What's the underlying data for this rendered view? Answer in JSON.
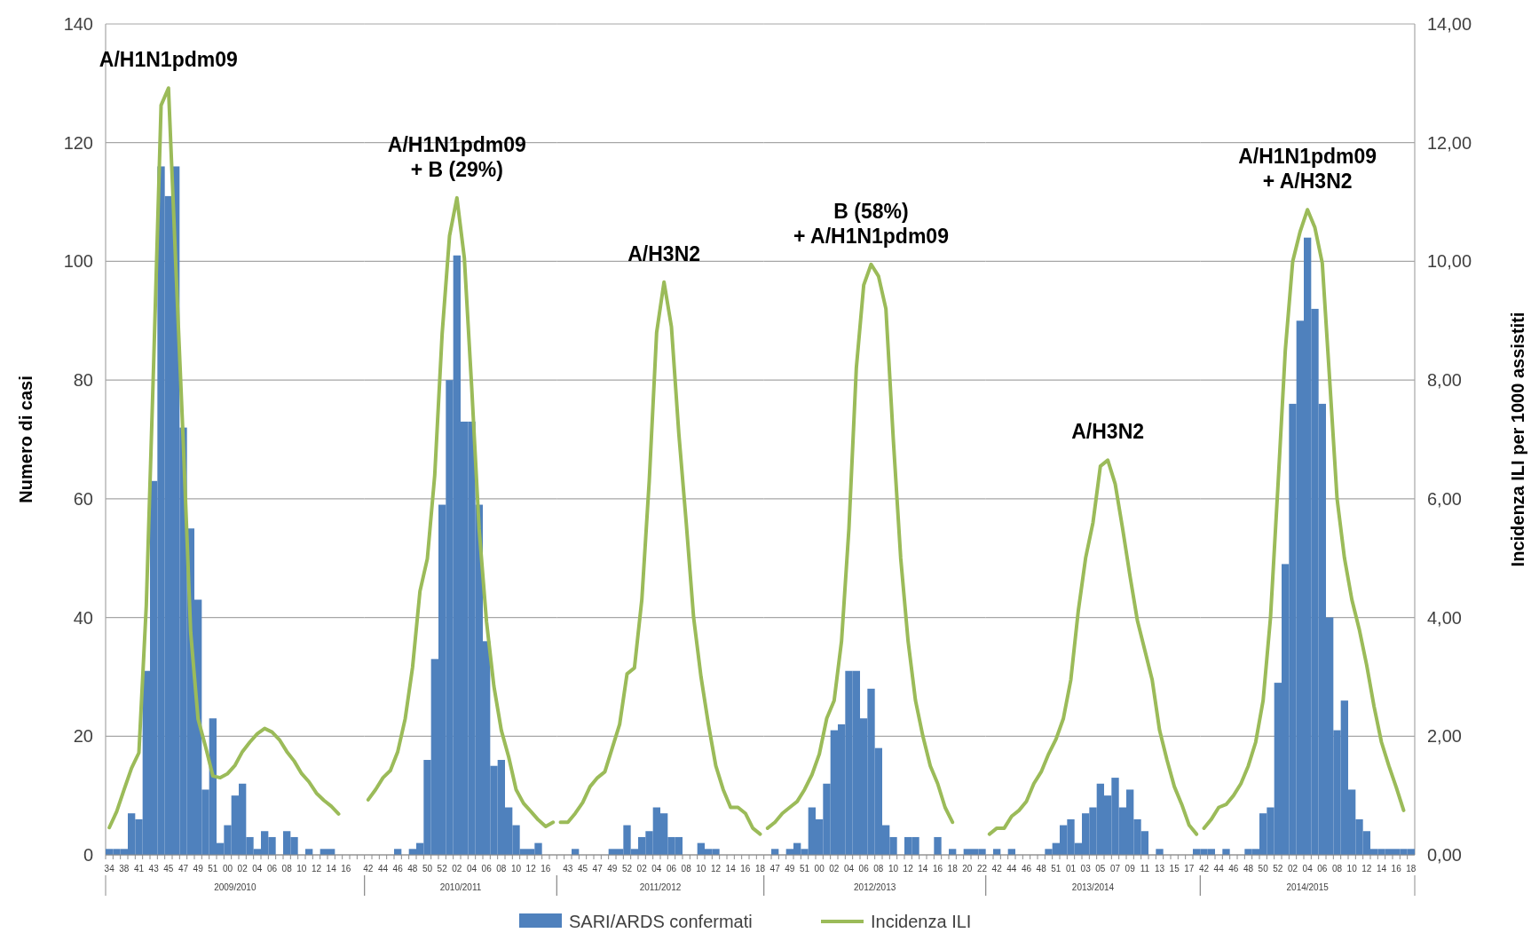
{
  "chart_data": [
    {
      "type": "bar",
      "xlabel": "2009/2010",
      "ylabel": "Numero di casi",
      "ylim": [
        0,
        140
      ],
      "yticks": [
        0,
        20,
        40,
        60,
        80,
        100,
        120,
        140
      ],
      "y2lim": [
        0,
        14
      ],
      "grid": "y",
      "categories": [
        "34",
        null,
        "38",
        null,
        "41",
        null,
        "43",
        null,
        "45",
        null,
        "47",
        null,
        "49",
        null,
        "51",
        null,
        "00",
        null,
        "02",
        null,
        "04",
        null,
        "06",
        null,
        "08",
        null,
        "10",
        null,
        "12",
        null,
        "14",
        null,
        "16",
        null,
        null
      ],
      "series": [
        {
          "color": "#4f81bd",
          "values": [
            1,
            1,
            1,
            7,
            6,
            31,
            63,
            116,
            111,
            116,
            72,
            55,
            43,
            11,
            23,
            2,
            5,
            10,
            12,
            3,
            1,
            4,
            3,
            0,
            4,
            3,
            0,
            1,
            0,
            1,
            1,
            0,
            0,
            0,
            0
          ]
        },
        {
          "type": "line",
          "axis": "y2",
          "color": "#9bbb59",
          "values": [
            0.46,
            0.73,
            1.1,
            1.46,
            1.72,
            4.2,
            8.3,
            12.63,
            12.92,
            9.9,
            6.95,
            3.75,
            2.29,
            1.83,
            1.33,
            1.3,
            1.37,
            1.51,
            1.74,
            1.9,
            2.04,
            2.13,
            2.07,
            1.94,
            1.74,
            1.58,
            1.37,
            1.23,
            1.04,
            0.92,
            0.82,
            0.69,
            null,
            null,
            null
          ]
        }
      ],
      "annotations": [
        "A/H1N1pdm09"
      ]
    },
    {
      "type": "bar",
      "xlabel": "2010/2011",
      "ylim": [
        0,
        140
      ],
      "yticks": [
        0,
        20,
        40,
        60,
        80,
        100,
        120,
        140
      ],
      "y2lim": [
        0,
        14
      ],
      "grid": "y",
      "tick_labels": "x",
      "categories": [
        "42",
        null,
        "44",
        null,
        "46",
        null,
        "48",
        null,
        "50",
        null,
        "52",
        null,
        "02",
        null,
        "04",
        null,
        "06",
        null,
        "08",
        null,
        "10",
        null,
        "12",
        null,
        "16",
        null
      ],
      "series": [
        {
          "color": "#4f81bd",
          "values": [
            0,
            0,
            0,
            0,
            1,
            0,
            1,
            2,
            16,
            33,
            59,
            80,
            101,
            73,
            73,
            59,
            36,
            15,
            16,
            8,
            5,
            1,
            1,
            2,
            0,
            0
          ]
        },
        {
          "type": "line",
          "axis": "y2",
          "color": "#9bbb59",
          "values": [
            0.93,
            1.1,
            1.3,
            1.42,
            1.74,
            2.29,
            3.16,
            4.44,
            4.99,
            6.4,
            8.78,
            10.43,
            11.07,
            10.06,
            7.87,
            5.49,
            3.93,
            2.84,
            2.1,
            1.65,
            1.1,
            0.87,
            0.73,
            0.59,
            0.48,
            0.55
          ]
        }
      ],
      "annotations": [
        "A/H1N1pdm09\n+ B (29%)"
      ]
    },
    {
      "type": "bar",
      "xlabel": "2011/2012",
      "ylim": [
        0,
        140
      ],
      "yticks": [
        0,
        20,
        40,
        60,
        80,
        100,
        120,
        140
      ],
      "y2lim": [
        0,
        14
      ],
      "grid": "y",
      "tick_labels": "x",
      "legend": "bottom",
      "categories": [
        null,
        "43",
        null,
        "45",
        null,
        "47",
        null,
        "49",
        null,
        "52",
        null,
        "02",
        null,
        "04",
        null,
        "06",
        null,
        "08",
        null,
        "10",
        null,
        "12",
        null,
        "14",
        null,
        "16",
        null,
        "18"
      ],
      "series": [
        {
          "name": "SARI/ARDS confermati",
          "color": "#4f81bd",
          "values": [
            0,
            0,
            1,
            0,
            0,
            0,
            0,
            1,
            1,
            5,
            1,
            3,
            4,
            8,
            7,
            3,
            3,
            0,
            0,
            2,
            1,
            1,
            0,
            0,
            0,
            0,
            0,
            0
          ]
        },
        {
          "name": "Incidenza ILI",
          "type": "line",
          "axis": "y2",
          "color": "#9bbb59",
          "values": [
            0.55,
            0.55,
            0.7,
            0.88,
            1.15,
            1.3,
            1.4,
            1.8,
            2.2,
            3.05,
            3.15,
            4.3,
            6.3,
            8.8,
            9.65,
            8.9,
            7.1,
            5.6,
            4.0,
            3.0,
            2.2,
            1.5,
            1.1,
            0.8,
            0.8,
            0.7,
            0.45,
            0.35
          ]
        }
      ],
      "annotations": [
        "A/H3N2"
      ]
    },
    {
      "type": "bar",
      "xlabel": "2012/2013",
      "ylim": [
        0,
        140
      ],
      "yticks": [
        0,
        20,
        40,
        60,
        80,
        100,
        120,
        140
      ],
      "y2lim": [
        0,
        14
      ],
      "grid": "y",
      "tick_labels": "x",
      "categories": [
        null,
        "47",
        null,
        "49",
        null,
        "51",
        null,
        "00",
        null,
        "02",
        null,
        "04",
        null,
        "06",
        null,
        "08",
        null,
        "10",
        null,
        "12",
        null,
        "14",
        null,
        "16",
        null,
        "18",
        null,
        "20",
        null,
        "22"
      ],
      "series": [
        {
          "color": "#4f81bd",
          "values": [
            0,
            1,
            0,
            1,
            2,
            1,
            8,
            6,
            12,
            21,
            22,
            31,
            31,
            23,
            28,
            18,
            5,
            3,
            0,
            3,
            3,
            0,
            0,
            3,
            0,
            1,
            0,
            1,
            1,
            1
          ]
        },
        {
          "type": "line",
          "axis": "y2",
          "color": "#9bbb59",
          "values": [
            0.45,
            0.55,
            0.7,
            0.8,
            0.9,
            1.1,
            1.35,
            1.7,
            2.3,
            2.6,
            3.6,
            5.5,
            8.2,
            9.6,
            9.95,
            9.75,
            9.2,
            7.0,
            5.0,
            3.6,
            2.6,
            2.0,
            1.5,
            1.2,
            0.8,
            0.55,
            null,
            null,
            null,
            null
          ]
        }
      ],
      "annotations": [
        "B (58%)\n+ A/H1N1pdm09"
      ]
    },
    {
      "type": "bar",
      "xlabel": "2013/2014",
      "ylim": [
        0,
        140
      ],
      "yticks": [
        0,
        20,
        40,
        60,
        80,
        100,
        120,
        140
      ],
      "y2lim": [
        0,
        14
      ],
      "grid": "y",
      "tick_labels": "x",
      "categories": [
        null,
        "42",
        null,
        "44",
        null,
        "46",
        null,
        "48",
        null,
        "51",
        null,
        "01",
        null,
        "03",
        null,
        "05",
        null,
        "07",
        null,
        "09",
        null,
        "11",
        null,
        "13",
        null,
        "15",
        null,
        "17",
        null
      ],
      "series": [
        {
          "color": "#4f81bd",
          "values": [
            0,
            1,
            0,
            1,
            0,
            0,
            0,
            0,
            1,
            2,
            5,
            6,
            2,
            7,
            8,
            12,
            10,
            13,
            8,
            11,
            6,
            4,
            0,
            1,
            0,
            0,
            0,
            0,
            1
          ]
        },
        {
          "type": "line",
          "axis": "y2",
          "color": "#9bbb59",
          "values": [
            0.35,
            0.45,
            0.45,
            0.65,
            0.75,
            0.9,
            1.2,
            1.4,
            1.7,
            1.95,
            2.3,
            2.95,
            4.1,
            5.0,
            5.6,
            6.55,
            6.65,
            6.25,
            5.5,
            4.7,
            3.95,
            3.45,
            2.95,
            2.1,
            1.6,
            1.15,
            0.85,
            0.5,
            0.35
          ]
        }
      ],
      "annotations": [
        "A/H3N2"
      ]
    },
    {
      "type": "bar",
      "xlabel": "2014/2015",
      "y2label": "Incidenza  ILI per 1000 assistiti",
      "ylim": [
        0,
        140
      ],
      "y2lim": [
        0,
        14
      ],
      "grid": "y",
      "y2ticks": [
        {
          "value": 0,
          "label": "0,00"
        },
        {
          "value": 2,
          "label": "2,00"
        },
        {
          "value": 4,
          "label": "4,00"
        },
        {
          "value": 6,
          "label": "6,00"
        },
        {
          "value": 8,
          "label": "8,00"
        },
        {
          "value": 10,
          "label": "10,00"
        },
        {
          "value": 12,
          "label": "12,00"
        },
        {
          "value": 14,
          "label": "14,00"
        }
      ],
      "categories": [
        "42",
        null,
        "44",
        null,
        "46",
        null,
        "48",
        null,
        "50",
        null,
        "52",
        null,
        "02",
        null,
        "04",
        null,
        "06",
        null,
        "08",
        null,
        "10",
        null,
        "12",
        null,
        "14",
        null,
        "16",
        null,
        "18"
      ],
      "series": [
        {
          "color": "#4f81bd",
          "values": [
            1,
            1,
            0,
            1,
            0,
            0,
            1,
            1,
            7,
            8,
            29,
            49,
            76,
            90,
            104,
            92,
            76,
            40,
            21,
            26,
            11,
            6,
            4,
            1,
            1,
            1,
            1,
            1,
            1
          ]
        },
        {
          "type": "line",
          "axis": "y2",
          "color": "#9bbb59",
          "values": [
            0.45,
            0.6,
            0.8,
            0.85,
            1.0,
            1.2,
            1.5,
            1.9,
            2.6,
            4.0,
            6.2,
            8.5,
            10.0,
            10.5,
            10.87,
            10.57,
            9.97,
            8.0,
            6.0,
            5.0,
            4.3,
            3.8,
            3.2,
            2.5,
            1.9,
            1.5,
            1.14,
            0.75,
            null
          ]
        }
      ],
      "annotations": [
        "A/H1N1pdm09\n+ A/H3N2"
      ]
    }
  ]
}
